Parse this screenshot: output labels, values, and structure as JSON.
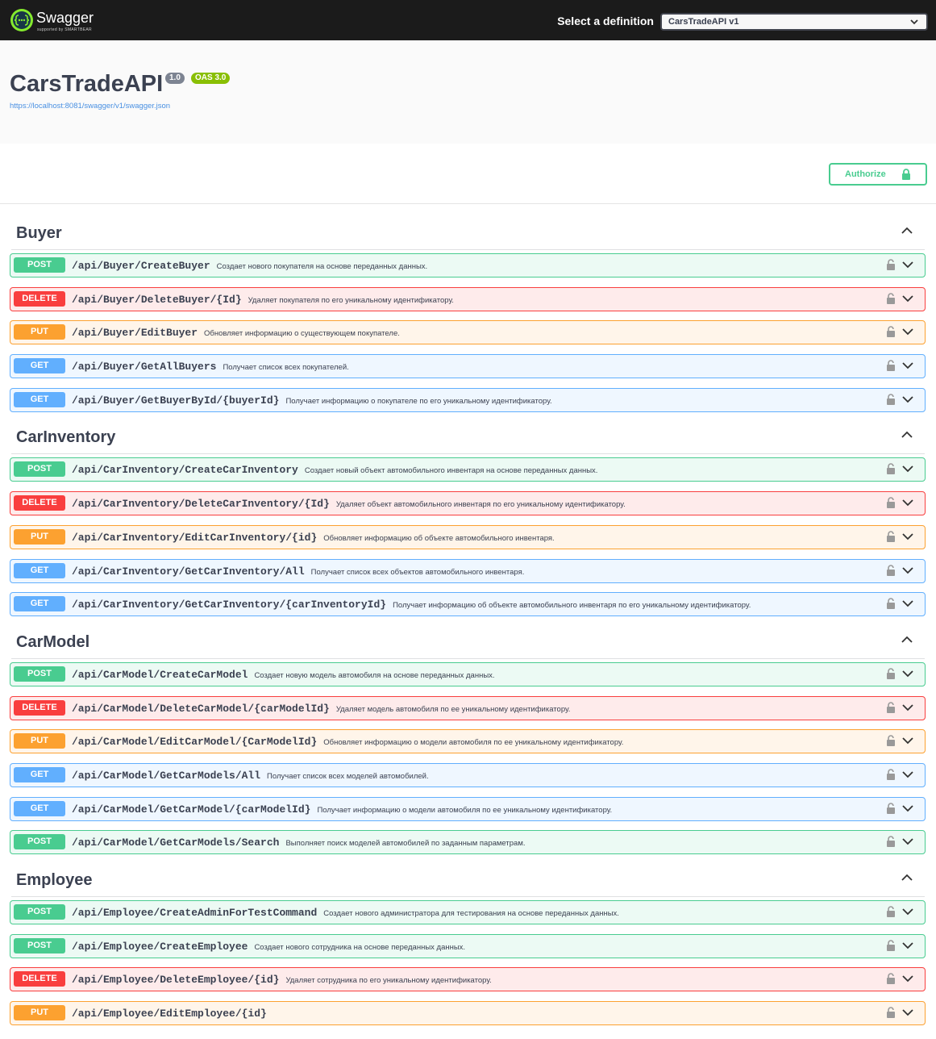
{
  "header": {
    "brand": "Swagger",
    "supported_by": "supported by SMARTBEAR",
    "select_label": "Select a definition",
    "select_value": "CarsTradeAPI v1"
  },
  "info": {
    "title": "CarsTradeAPI",
    "version": "1.0",
    "oas": "OAS 3.0",
    "url": "https://localhost:8081/swagger/v1/swagger.json"
  },
  "authorize": "Authorize",
  "tags": [
    {
      "name": "Buyer",
      "operations": [
        {
          "method": "POST",
          "path": "/api/Buyer/CreateBuyer",
          "summary": "Создает нового покупателя на основе переданных данных."
        },
        {
          "method": "DELETE",
          "path": "/api/Buyer/DeleteBuyer/{Id}",
          "summary": "Удаляет покупателя по его уникальному идентификатору."
        },
        {
          "method": "PUT",
          "path": "/api/Buyer/EditBuyer",
          "summary": "Обновляет информацию о существующем покупателе."
        },
        {
          "method": "GET",
          "path": "/api/Buyer/GetAllBuyers",
          "summary": "Получает список всех покупателей."
        },
        {
          "method": "GET",
          "path": "/api/Buyer/GetBuyerById/{buyerId}",
          "summary": "Получает информацию о покупателе по его уникальному идентификатору."
        }
      ]
    },
    {
      "name": "CarInventory",
      "operations": [
        {
          "method": "POST",
          "path": "/api/CarInventory/CreateCarInventory",
          "summary": "Создает новый объект автомобильного инвентаря на основе переданных данных."
        },
        {
          "method": "DELETE",
          "path": "/api/CarInventory/DeleteCarInventory/{Id}",
          "summary": "Удаляет объект автомобильного инвентаря по его уникальному идентификатору."
        },
        {
          "method": "PUT",
          "path": "/api/CarInventory/EditCarInventory/{id}",
          "summary": "Обновляет информацию об объекте автомобильного инвентаря."
        },
        {
          "method": "GET",
          "path": "/api/CarInventory/GetCarInventory/All",
          "summary": "Получает список всех объектов автомобильного инвентаря."
        },
        {
          "method": "GET",
          "path": "/api/CarInventory/GetCarInventory/{carInventoryId}",
          "summary": "Получает информацию об объекте автомобильного инвентаря по его уникальному идентификатору."
        }
      ]
    },
    {
      "name": "CarModel",
      "operations": [
        {
          "method": "POST",
          "path": "/api/CarModel/CreateCarModel",
          "summary": "Создает новую модель автомобиля на основе переданных данных."
        },
        {
          "method": "DELETE",
          "path": "/api/CarModel/DeleteCarModel/{carModelId}",
          "summary": "Удаляет модель автомобиля по ее уникальному идентификатору."
        },
        {
          "method": "PUT",
          "path": "/api/CarModel/EditCarModel/{CarModelId}",
          "summary": "Обновляет информацию о модели автомобиля по ее уникальному идентификатору."
        },
        {
          "method": "GET",
          "path": "/api/CarModel/GetCarModels/All",
          "summary": "Получает список всех моделей автомобилей."
        },
        {
          "method": "GET",
          "path": "/api/CarModel/GetCarModel/{carModelId}",
          "summary": "Получает информацию о модели автомобиля по ее уникальному идентификатору."
        },
        {
          "method": "POST",
          "path": "/api/CarModel/GetCarModels/Search",
          "summary": "Выполняет поиск моделей автомобилей по заданным параметрам."
        }
      ]
    },
    {
      "name": "Employee",
      "operations": [
        {
          "method": "POST",
          "path": "/api/Employee/CreateAdminForTestCommand",
          "summary": "Создает нового администратора для тестирования на основе переданных данных."
        },
        {
          "method": "POST",
          "path": "/api/Employee/CreateEmployee",
          "summary": "Создает нового сотрудника на основе переданных данных."
        },
        {
          "method": "DELETE",
          "path": "/api/Employee/DeleteEmployee/{id}",
          "summary": "Удаляет сотрудника по его уникальному идентификатору."
        },
        {
          "method": "PUT",
          "path": "/api/Employee/EditEmployee/{id}"
        }
      ]
    }
  ]
}
